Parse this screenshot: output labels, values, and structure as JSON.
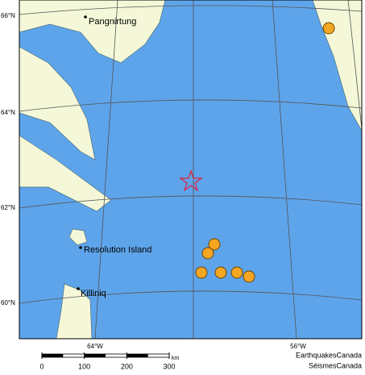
{
  "graticule": {
    "lat_labels": [
      "66°N",
      "64°N",
      "62°N",
      "60°N"
    ],
    "lon_labels": [
      "64°W",
      "56°W"
    ]
  },
  "places": [
    {
      "label": "Pangnirtung"
    },
    {
      "label": "Resolution Island"
    },
    {
      "label": "Killiniq"
    }
  ],
  "scale_bar": {
    "ticks": [
      0,
      100,
      200,
      300
    ],
    "unit": "km"
  },
  "credit": [
    "EarthquakesCanada",
    "SéismesCanada"
  ]
}
